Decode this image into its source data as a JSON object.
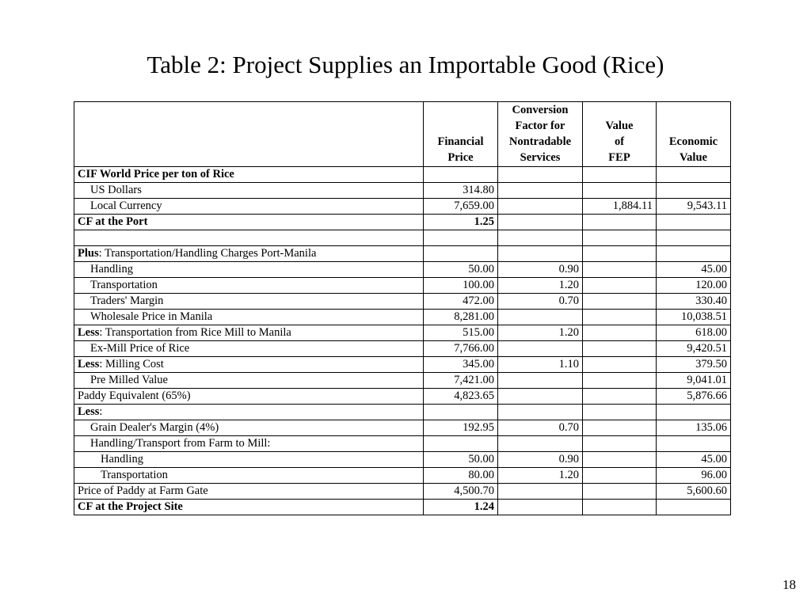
{
  "title": "Table 2: Project Supplies an Importable Good (Rice)",
  "page_number": "18",
  "table": {
    "headers": [
      "",
      "Financial Price",
      "Conversion Factor for Nontradable Services",
      "Value of FEP",
      "Economic Value"
    ],
    "rows": [
      {
        "label": "CIF World Price per ton of Rice",
        "style": "bold",
        "indent": 0,
        "fin": "",
        "cf": "",
        "fep": "",
        "econ": ""
      },
      {
        "label": "US Dollars",
        "indent": 1,
        "fin": "314.80",
        "cf": "",
        "fep": "",
        "econ": ""
      },
      {
        "label": "Local Currency",
        "indent": 1,
        "fin": "7,659.00",
        "cf": "",
        "fep": "1,884.11",
        "econ": "9,543.11"
      },
      {
        "label": "CF at the Port",
        "style": "bold",
        "indent": 0,
        "fin": "1.25",
        "cf": "",
        "fep": "",
        "econ": ""
      },
      {
        "label": "",
        "indent": 0,
        "fin": "",
        "cf": "",
        "fep": "",
        "econ": ""
      },
      {
        "label_bold": "Plus",
        "label": ": Transportation/Handling Charges Port-Manila",
        "indent": 0,
        "fin": "",
        "cf": "",
        "fep": "",
        "econ": ""
      },
      {
        "label": "Handling",
        "indent": 1,
        "fin": "50.00",
        "cf": "0.90",
        "fep": "",
        "econ": "45.00"
      },
      {
        "label": "Transportation",
        "indent": 1,
        "fin": "100.00",
        "cf": "1.20",
        "fep": "",
        "econ": "120.00"
      },
      {
        "label": "Traders' Margin",
        "indent": 1,
        "fin": "472.00",
        "cf": "0.70",
        "fep": "",
        "econ": "330.40"
      },
      {
        "label": "Wholesale Price in Manila",
        "indent": 1,
        "fin": "8,281.00",
        "cf": "",
        "fep": "",
        "econ": "10,038.51"
      },
      {
        "label_bold": "Less",
        "label": ": Transportation from Rice Mill to Manila",
        "indent": 0,
        "fin": "515.00",
        "cf": "1.20",
        "fep": "",
        "econ": "618.00"
      },
      {
        "label": "Ex-Mill Price of Rice",
        "indent": 1,
        "fin": "7,766.00",
        "cf": "",
        "fep": "",
        "econ": "9,420.51"
      },
      {
        "label_bold": "Less",
        "label": ": Milling Cost",
        "indent": 0,
        "fin": "345.00",
        "cf": "1.10",
        "fep": "",
        "econ": "379.50"
      },
      {
        "label": "Pre Milled Value",
        "indent": 1,
        "fin": "7,421.00",
        "cf": "",
        "fep": "",
        "econ": "9,041.01"
      },
      {
        "label": "Paddy Equivalent (65%)",
        "indent": 0,
        "fin": "4,823.65",
        "cf": "",
        "fep": "",
        "econ": "5,876.66"
      },
      {
        "label_bold": "Less",
        "label": ":",
        "indent": 0,
        "fin": "",
        "cf": "",
        "fep": "",
        "econ": ""
      },
      {
        "label": "Grain Dealer's Margin (4%)",
        "indent": 1,
        "fin": "192.95",
        "cf": "0.70",
        "fep": "",
        "econ": "135.06"
      },
      {
        "label": "Handling/Transport from Farm to Mill:",
        "indent": 1,
        "fin": "",
        "cf": "",
        "fep": "",
        "econ": ""
      },
      {
        "label": "Handling",
        "indent": 2,
        "fin": "50.00",
        "cf": "0.90",
        "fep": "",
        "econ": "45.00"
      },
      {
        "label": "Transportation",
        "indent": 2,
        "fin": "80.00",
        "cf": "1.20",
        "fep": "",
        "econ": "96.00"
      },
      {
        "label": "Price of Paddy at Farm Gate",
        "indent": 0,
        "fin": "4,500.70",
        "cf": "",
        "fep": "",
        "econ": "5,600.60"
      },
      {
        "label": "CF at the Project Site",
        "style": "bold",
        "indent": 0,
        "fin": "1.24",
        "cf": "",
        "fep": "",
        "econ": ""
      }
    ]
  }
}
